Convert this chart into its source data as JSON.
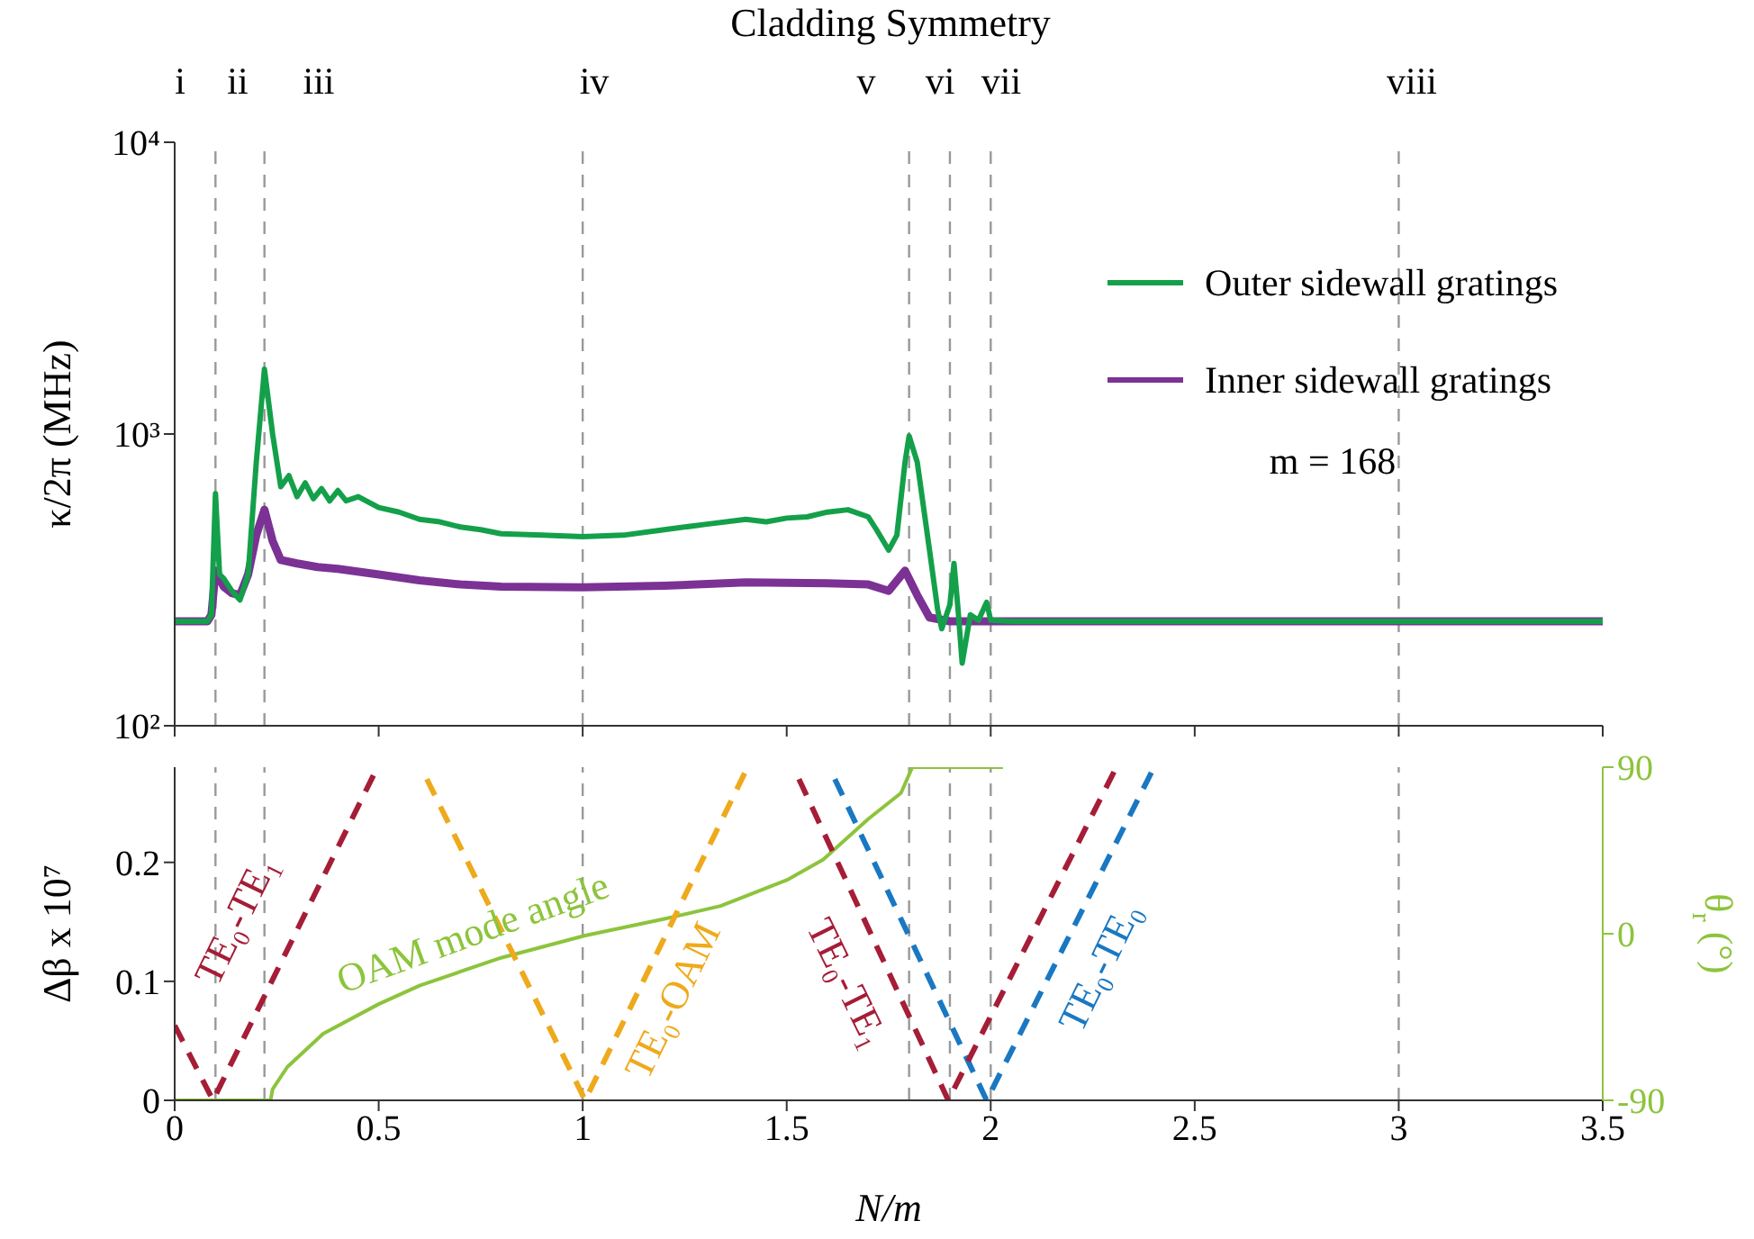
{
  "chart_data": [
    {
      "type": "line",
      "title": "Cladding Symmetry",
      "ylabel": "κ/2π (MHz)",
      "log": true,
      "xlim": [
        0,
        3.5
      ],
      "xticks": [
        0,
        0.5,
        1,
        1.5,
        2,
        2.5,
        3,
        3.5
      ],
      "ylim": [
        100,
        10000
      ],
      "yticks": [
        {
          "value": 100,
          "label": "10²"
        },
        {
          "value": 1000,
          "label": "10³"
        },
        {
          "value": 10000,
          "label": "10⁴"
        }
      ],
      "tick_labels": "y",
      "legend": "top right",
      "marker": "none",
      "series": [
        {
          "name": "Outer sidewall gratings",
          "color": "#14a04a",
          "x": [
            0,
            0.08,
            0.09,
            0.1,
            0.11,
            0.12,
            0.14,
            0.16,
            0.18,
            0.2,
            0.22,
            0.24,
            0.26,
            0.28,
            0.3,
            0.32,
            0.34,
            0.36,
            0.38,
            0.4,
            0.42,
            0.45,
            0.5,
            0.55,
            0.6,
            0.65,
            0.7,
            0.75,
            0.8,
            0.9,
            1.0,
            1.1,
            1.2,
            1.3,
            1.4,
            1.45,
            1.5,
            1.55,
            1.6,
            1.65,
            1.7,
            1.72,
            1.75,
            1.77,
            1.79,
            1.8,
            1.82,
            1.85,
            1.87,
            1.88,
            1.9,
            1.91,
            1.92,
            1.93,
            1.95,
            1.97,
            1.99,
            2.0,
            2.05,
            3.5
          ],
          "values": [
            228,
            228,
            240,
            625,
            330,
            320,
            290,
            270,
            330,
            800,
            1667,
            1000,
            660,
            720,
            610,
            680,
            600,
            650,
            590,
            640,
            590,
            610,
            560,
            540,
            510,
            500,
            480,
            470,
            455,
            450,
            445,
            450,
            470,
            490,
            510,
            500,
            515,
            520,
            540,
            550,
            520,
            470,
            400,
            450,
            800,
            985,
            800,
            400,
            250,
            215,
            260,
            360,
            250,
            164,
            240,
            230,
            265,
            230,
            228,
            228
          ]
        },
        {
          "name": "Inner sidewall gratings",
          "color": "#7b3294",
          "x": [
            0,
            0.08,
            0.09,
            0.1,
            0.12,
            0.14,
            0.16,
            0.18,
            0.2,
            0.22,
            0.24,
            0.26,
            0.3,
            0.35,
            0.4,
            0.5,
            0.6,
            0.7,
            0.8,
            1.0,
            1.2,
            1.4,
            1.6,
            1.7,
            1.75,
            1.79,
            1.82,
            1.85,
            1.9,
            3.5
          ],
          "values": [
            228,
            228,
            240,
            340,
            300,
            285,
            280,
            330,
            450,
            550,
            430,
            370,
            360,
            350,
            345,
            330,
            315,
            305,
            300,
            298,
            302,
            310,
            308,
            305,
            290,
            340,
            280,
            235,
            228,
            228
          ]
        }
      ],
      "ref_lines": [
        {
          "axis": "x",
          "value": 0.1,
          "color": "#999999",
          "line_style": "dashed"
        },
        {
          "axis": "x",
          "value": 0.22,
          "color": "#999999",
          "line_style": "dashed"
        },
        {
          "axis": "x",
          "value": 1,
          "color": "#999999",
          "line_style": "dashed"
        },
        {
          "axis": "x",
          "value": 1.8,
          "color": "#999999",
          "line_style": "dashed"
        },
        {
          "axis": "x",
          "value": 1.9,
          "color": "#999999",
          "line_style": "dashed"
        },
        {
          "axis": "x",
          "value": 2,
          "color": "#999999",
          "line_style": "dashed"
        },
        {
          "axis": "x",
          "value": 3,
          "color": "#999999",
          "line_style": "dashed"
        }
      ],
      "annotations": [
        "m = 168",
        "i",
        "ii",
        "iii",
        "iv",
        "v",
        "vi",
        "vii",
        "viii"
      ]
    },
    {
      "type": "line",
      "xlabel": "N/m",
      "ylabel": "Δβ x 10⁷",
      "y2label": "θ$_{r}$ (°)",
      "xlim": [
        0,
        3.5
      ],
      "xticks": [
        0,
        0.5,
        1,
        1.5,
        2,
        2.5,
        3,
        3.5
      ],
      "ylim": [
        0,
        0.28
      ],
      "yticks": [
        0,
        0.1,
        0.2
      ],
      "y2lim": [
        -90,
        90
      ],
      "y2ticks": [
        -90,
        0,
        90
      ],
      "marker": "none",
      "series": [
        {
          "name": "TE₀-TE₁",
          "color": "#a51d36",
          "line_style": "dashed",
          "x": [
            0,
            0.094,
            0.497
          ],
          "values": [
            0.063,
            0,
            0.28
          ]
        },
        {
          "name": "TE₀-OAM",
          "color": "#eeaa1c",
          "line_style": "dashed",
          "x": [
            0.618,
            1.006,
            1.397
          ],
          "values": [
            0.27,
            0,
            0.275
          ]
        },
        {
          "name": "TE₀-TE₁",
          "color": "#a51d36",
          "line_style": "dashed",
          "x": [
            1.53,
            1.896,
            2.305
          ],
          "values": [
            0.27,
            0,
            0.278
          ]
        },
        {
          "name": "TE₀-TE₀",
          "color": "#1a78c2",
          "line_style": "dashed",
          "x": [
            1.618,
            1.99,
            2.396
          ],
          "values": [
            0.27,
            0,
            0.277
          ]
        },
        {
          "name": "OAM mode angle",
          "color": "#8cc43c",
          "axis": "y2",
          "line_style": "solid",
          "x": [
            0,
            0.235,
            0.24,
            0.276,
            0.364,
            0.5,
            0.6,
            0.8,
            1.006,
            1.2,
            1.338,
            1.5,
            1.589,
            1.7,
            1.78,
            1.808,
            2.03
          ],
          "values": [
            -90,
            -90,
            -84,
            -72,
            -54,
            -38,
            -28,
            -13,
            -1,
            8,
            15,
            29,
            40,
            62,
            76,
            90,
            90
          ]
        }
      ],
      "ref_lines": [
        {
          "axis": "x",
          "value": 0.1,
          "color": "#999999",
          "line_style": "dashed"
        },
        {
          "axis": "x",
          "value": 0.22,
          "color": "#999999",
          "line_style": "dashed"
        },
        {
          "axis": "x",
          "value": 1,
          "color": "#999999",
          "line_style": "dashed"
        },
        {
          "axis": "x",
          "value": 1.8,
          "color": "#999999",
          "line_style": "dashed"
        },
        {
          "axis": "x",
          "value": 1.9,
          "color": "#999999",
          "line_style": "dashed"
        },
        {
          "axis": "x",
          "value": 2,
          "color": "#999999",
          "line_style": "dashed"
        },
        {
          "axis": "x",
          "value": 3,
          "color": "#999999",
          "line_style": "dashed"
        }
      ]
    }
  ]
}
